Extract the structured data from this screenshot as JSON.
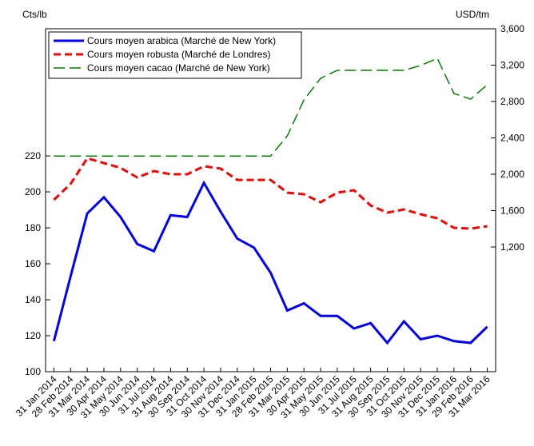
{
  "chart_data": {
    "type": "line",
    "y_label": "Cts/lb",
    "y2_label": "USD/tm",
    "categories": [
      "31 Jan 2014",
      "28 Feb 2014",
      "31 Mar 2014",
      "30 Apr 2014",
      "31 May 2014",
      "30 Jun 2014",
      "31 Jul 2014",
      "31 Aug 2014",
      "30 Sep 2014",
      "31 Oct 2014",
      "30 Nov 2014",
      "31 Dec 2014",
      "31 Jan 2015",
      "28 Feb 2015",
      "31 Mar 2015",
      "30 Apr 2015",
      "31 May 2015",
      "30 Jun 2015",
      "31 Jul 2015",
      "31 Aug 2015",
      "30 Sep 2015",
      "31 Oct 2015",
      "30 Nov 2015",
      "31 Dec 2015",
      "31 Jan 2016",
      "29 Feb 2016",
      "31 Mar 2016"
    ],
    "series": [
      {
        "name": "Cours moyen arabica (Marché de New York)",
        "color": "#0000ff",
        "dash": "solid",
        "width": 3,
        "axis": "y",
        "values": [
          117,
          153,
          188,
          197,
          186,
          171,
          167,
          187,
          186,
          205,
          189,
          174,
          169,
          155,
          134,
          138,
          131,
          131,
          124,
          127,
          116,
          128,
          118,
          120,
          117,
          116,
          125
        ]
      },
      {
        "name": "Cours moyen robusta (Marché de Londres)",
        "color": "#ff0000",
        "dash": "dashed",
        "width": 3,
        "axis": "y2",
        "values": [
          1719,
          1894,
          2176,
          2123,
          2070,
          1965,
          2035,
          2000,
          2000,
          2088,
          2062,
          1938,
          1938,
          1938,
          1798,
          1780,
          1692,
          1798,
          1824,
          1657,
          1578,
          1613,
          1560,
          1516,
          1411,
          1402,
          1429
        ]
      },
      {
        "name": "Cours moyen cacao (Marché de New York)",
        "color": "#008000",
        "dash": "longdash",
        "width": 1.5,
        "axis": "y2",
        "values": [
          2200,
          2200,
          2200,
          2200,
          2200,
          2200,
          2200,
          2200,
          2200,
          2200,
          2200,
          2200,
          2200,
          2200,
          2422,
          2818,
          3055,
          3143,
          3143,
          3143,
          3143,
          3143,
          3196,
          3275,
          2888,
          2826,
          2985
        ]
      }
    ],
    "ylim": [
      100,
      290.7
    ],
    "yticks": [
      100,
      120,
      140,
      160,
      180,
      200,
      220
    ],
    "y2lim": [
      -171,
      3600
    ],
    "y2ticks": [
      {
        "value": 1200,
        "label": "1,200"
      },
      {
        "value": 1600,
        "label": "1,600"
      },
      {
        "value": 2000,
        "label": "2,000"
      },
      {
        "value": 2400,
        "label": "2,400"
      },
      {
        "value": 2800,
        "label": "2,800"
      },
      {
        "value": 3200,
        "label": "3,200"
      },
      {
        "value": 3600,
        "label": "3,600"
      }
    ],
    "legend": "top-left"
  }
}
